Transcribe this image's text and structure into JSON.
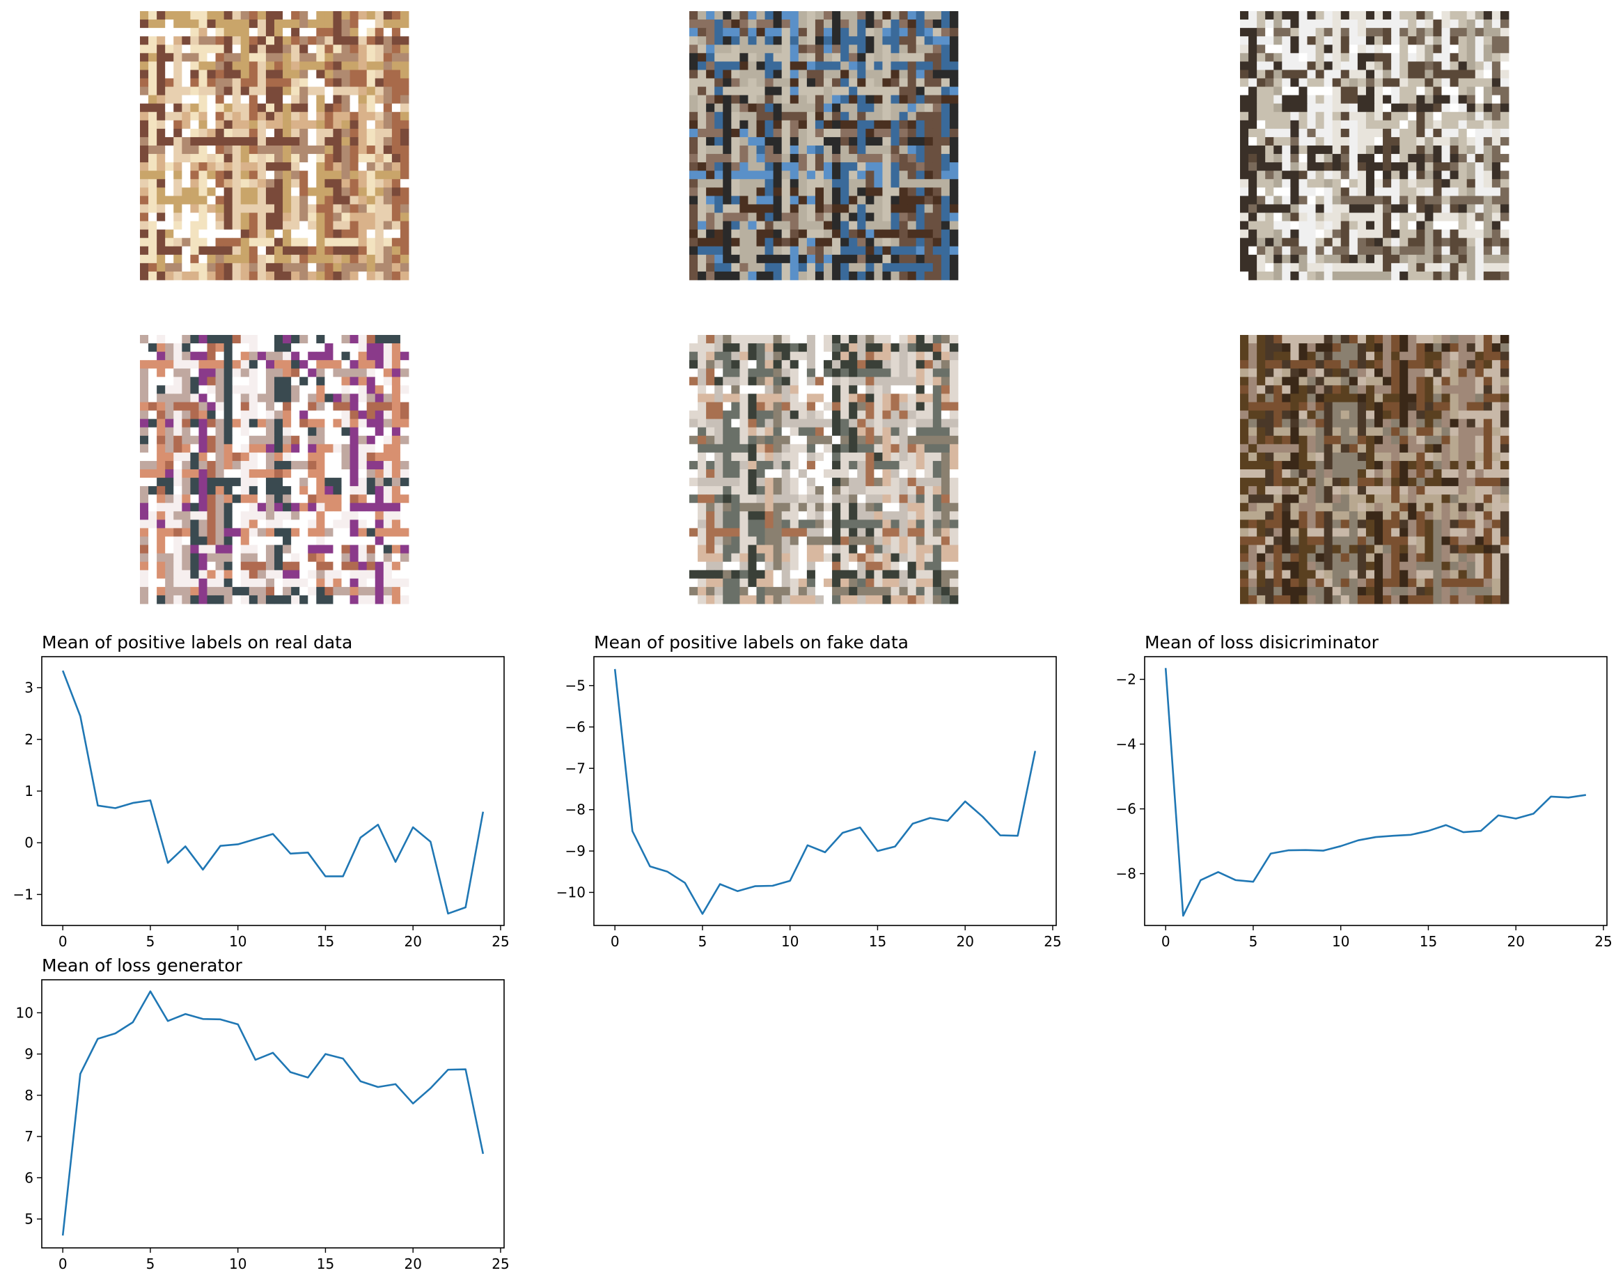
{
  "colors": {
    "line": "#1f77b4",
    "axis": "#000000"
  },
  "samples": [
    {
      "name": "sample-1",
      "palette": [
        "#c9a56a",
        "#f3e3c0",
        "#ffffff",
        "#a86a4a",
        "#d9b28a",
        "#7a4a3a",
        "#e8d0b0",
        "#b08a70"
      ]
    },
    {
      "name": "sample-2",
      "palette": [
        "#6a5040",
        "#4a3020",
        "#b8b0a0",
        "#5a90c8",
        "#3a6a9a",
        "#8a7060",
        "#c8c0b0",
        "#2a2a2a"
      ]
    },
    {
      "name": "sample-3",
      "palette": [
        "#b0a898",
        "#ffffff",
        "#f0f0f0",
        "#3a3028",
        "#7a6a5a",
        "#c8c0b0",
        "#5a4838",
        "#e8e4dc"
      ]
    },
    {
      "name": "sample-4",
      "palette": [
        "#ffffff",
        "#f6efef",
        "#b06a50",
        "#8a3a8a",
        "#3a4a50",
        "#d89070",
        "#c0a8a0",
        "#ffffff"
      ]
    },
    {
      "name": "sample-5",
      "palette": [
        "#c8c0b8",
        "#ffffff",
        "#6a7068",
        "#3a4038",
        "#a87050",
        "#e0d8d0",
        "#8a8070",
        "#d8b8a0"
      ]
    },
    {
      "name": "sample-6",
      "palette": [
        "#8a8070",
        "#4a3828",
        "#a08878",
        "#7a5030",
        "#5a4020",
        "#b8a890",
        "#3a2818",
        "#c8b8a8"
      ]
    }
  ],
  "chart_data": [
    {
      "type": "line",
      "title": "Mean of positive labels on real data",
      "x": [
        0,
        1,
        2,
        3,
        4,
        5,
        6,
        7,
        8,
        9,
        10,
        11,
        12,
        13,
        14,
        15,
        16,
        17,
        18,
        19,
        20,
        21,
        22,
        23,
        24
      ],
      "values": [
        3.33,
        2.45,
        0.72,
        0.67,
        0.77,
        0.82,
        -0.39,
        -0.07,
        -0.52,
        -0.06,
        -0.03,
        0.07,
        0.17,
        -0.21,
        -0.19,
        -0.65,
        -0.65,
        0.1,
        0.35,
        -0.37,
        0.3,
        0.02,
        -1.37,
        -1.25,
        0.6
      ],
      "xlim": [
        -1.2,
        25.2
      ],
      "ylim": [
        -1.6,
        3.6
      ],
      "xticks": [
        0,
        5,
        10,
        15,
        20,
        25
      ],
      "yticks": [
        -1,
        0,
        1,
        2,
        3
      ],
      "ytick_labels": [
        "−1",
        "0",
        "1",
        "2",
        "3"
      ]
    },
    {
      "type": "line",
      "title": "Mean of positive labels on fake data",
      "x": [
        0,
        1,
        2,
        3,
        4,
        5,
        6,
        7,
        8,
        9,
        10,
        11,
        12,
        13,
        14,
        15,
        16,
        17,
        18,
        19,
        20,
        21,
        22,
        23,
        24
      ],
      "values": [
        -4.6,
        -8.52,
        -9.37,
        -9.5,
        -9.77,
        -10.52,
        -9.8,
        -9.97,
        -9.85,
        -9.84,
        -9.72,
        -8.86,
        -9.03,
        -8.56,
        -8.43,
        -9.0,
        -8.89,
        -8.34,
        -8.2,
        -8.27,
        -7.8,
        -8.17,
        -8.62,
        -8.63,
        -6.58
      ],
      "xlim": [
        -1.2,
        25.2
      ],
      "ylim": [
        -10.8,
        -4.3
      ],
      "xticks": [
        0,
        5,
        10,
        15,
        20,
        25
      ],
      "yticks": [
        -10,
        -9,
        -8,
        -7,
        -6,
        -5
      ],
      "ytick_labels": [
        "−10",
        "−9",
        "−8",
        "−7",
        "−6",
        "−5"
      ]
    },
    {
      "type": "line",
      "title": "Mean of loss disicriminator",
      "x": [
        0,
        1,
        2,
        3,
        4,
        5,
        6,
        7,
        8,
        9,
        10,
        11,
        12,
        13,
        14,
        15,
        16,
        17,
        18,
        19,
        20,
        21,
        22,
        23,
        24
      ],
      "values": [
        -1.65,
        -9.3,
        -8.2,
        -7.95,
        -8.2,
        -8.25,
        -7.38,
        -7.28,
        -7.27,
        -7.29,
        -7.15,
        -6.97,
        -6.87,
        -6.83,
        -6.8,
        -6.68,
        -6.5,
        -6.72,
        -6.68,
        -6.2,
        -6.3,
        -6.15,
        -5.62,
        -5.65,
        -5.57
      ],
      "xlim": [
        -1.2,
        25.2
      ],
      "ylim": [
        -9.6,
        -1.3
      ],
      "xticks": [
        0,
        5,
        10,
        15,
        20,
        25
      ],
      "yticks": [
        -8,
        -6,
        -4,
        -2
      ],
      "ytick_labels": [
        "−8",
        "−6",
        "−4",
        "−2"
      ]
    },
    {
      "type": "line",
      "title": "Mean of loss generator",
      "x": [
        0,
        1,
        2,
        3,
        4,
        5,
        6,
        7,
        8,
        9,
        10,
        11,
        12,
        13,
        14,
        15,
        16,
        17,
        18,
        19,
        20,
        21,
        22,
        23,
        24
      ],
      "values": [
        4.6,
        8.52,
        9.37,
        9.5,
        9.77,
        10.52,
        9.8,
        9.97,
        9.85,
        9.84,
        9.72,
        8.86,
        9.03,
        8.56,
        8.43,
        9.0,
        8.89,
        8.34,
        8.2,
        8.27,
        7.8,
        8.17,
        8.62,
        8.63,
        6.58
      ],
      "xlim": [
        -1.2,
        25.2
      ],
      "ylim": [
        4.3,
        10.8
      ],
      "xticks": [
        0,
        5,
        10,
        15,
        20,
        25
      ],
      "yticks": [
        5,
        6,
        7,
        8,
        9,
        10
      ],
      "ytick_labels": [
        "5",
        "6",
        "7",
        "8",
        "9",
        "10"
      ]
    }
  ]
}
